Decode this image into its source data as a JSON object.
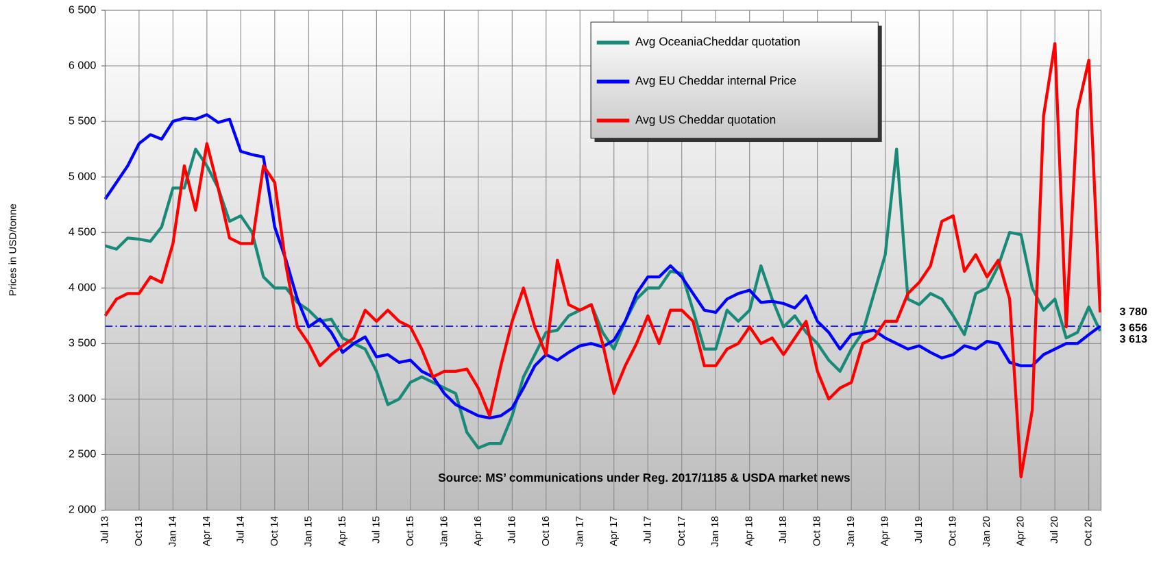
{
  "chart_data": {
    "type": "line",
    "y_label": "Prices in USD/tonne",
    "source": "Source: MS’ communications under Reg. 2017/1185  & USDA market news",
    "categories": [
      "Jul 13",
      null,
      null,
      "Oct 13",
      null,
      null,
      "Jan 14",
      null,
      null,
      "Apr 14",
      null,
      null,
      "Jul 14",
      null,
      null,
      "Oct 14",
      null,
      null,
      "Jan 15",
      null,
      null,
      "Apr 15",
      null,
      null,
      "Jul 15",
      null,
      null,
      "Oct 15",
      null,
      null,
      "Jan 16",
      null,
      null,
      "Apr 16",
      null,
      null,
      "Jul 16",
      null,
      null,
      "Oct 16",
      null,
      null,
      "Jan 17",
      null,
      null,
      "Apr 17",
      null,
      null,
      "Jul 17",
      null,
      null,
      "Oct 17",
      null,
      null,
      "Jan 18",
      null,
      null,
      "Apr 18",
      null,
      null,
      "Jul 18",
      null,
      null,
      "Oct 18",
      null,
      null,
      "Jan 19",
      null,
      null,
      "Apr 19",
      null,
      null,
      "Jul 19",
      null,
      null,
      "Oct 19",
      null,
      null,
      "Jan 20",
      null,
      null,
      "Apr 20",
      null,
      null,
      "Jul 20",
      null,
      null,
      "Oct 20",
      null
    ],
    "series": [
      {
        "name": "Avg OceaniaCheddar quotation",
        "color": "#1a8a78",
        "label_color": "#2e9e4e",
        "last_label": "3 613",
        "values": [
          4380,
          4350,
          4450,
          4440,
          4420,
          4550,
          4900,
          4900,
          5250,
          5100,
          4900,
          4600,
          4650,
          4500,
          4100,
          4000,
          4000,
          3870,
          3800,
          3700,
          3720,
          3550,
          3500,
          3450,
          3250,
          2950,
          3000,
          3150,
          3200,
          3150,
          3100,
          3050,
          2700,
          2560,
          2600,
          2600,
          2850,
          3200,
          3400,
          3600,
          3620,
          3750,
          3800,
          3850,
          3600,
          3450,
          3700,
          3900,
          4000,
          4000,
          4150,
          4130,
          3800,
          3450,
          3450,
          3800,
          3700,
          3800,
          4200,
          3900,
          3650,
          3750,
          3600,
          3500,
          3350,
          3250,
          3450,
          3600,
          3950,
          4300,
          5250,
          3900,
          3850,
          3950,
          3900,
          3750,
          3580,
          3950,
          4000,
          4200,
          4500,
          4480,
          4000,
          3800,
          3900,
          3550,
          3600,
          3830,
          3613
        ]
      },
      {
        "name": "Avg EU Cheddar internal Price",
        "color": "#0000ff",
        "label_color": "#0000ff",
        "last_label": "3 656",
        "values": [
          4800,
          4950,
          5100,
          5300,
          5380,
          5340,
          5500,
          5530,
          5520,
          5560,
          5490,
          5520,
          5230,
          5200,
          5180,
          4550,
          4250,
          3900,
          3650,
          3720,
          3600,
          3420,
          3500,
          3560,
          3380,
          3400,
          3330,
          3350,
          3250,
          3200,
          3050,
          2950,
          2900,
          2850,
          2830,
          2850,
          2920,
          3100,
          3300,
          3400,
          3350,
          3420,
          3480,
          3500,
          3470,
          3530,
          3700,
          3950,
          4100,
          4100,
          4200,
          4100,
          3950,
          3800,
          3780,
          3900,
          3950,
          3980,
          3870,
          3880,
          3860,
          3820,
          3930,
          3700,
          3600,
          3450,
          3580,
          3600,
          3620,
          3550,
          3500,
          3450,
          3480,
          3420,
          3370,
          3400,
          3480,
          3450,
          3520,
          3500,
          3330,
          3300,
          3300,
          3400,
          3450,
          3500,
          3500,
          3580,
          3656
        ]
      },
      {
        "name": "Avg US Cheddar quotation",
        "color": "#ff0000",
        "label_color": "#ff0000",
        "last_label": "3 780",
        "values": [
          3750,
          3900,
          3950,
          3950,
          4100,
          4050,
          4400,
          5100,
          4700,
          5300,
          4900,
          4450,
          4400,
          4400,
          5100,
          4950,
          4200,
          3650,
          3500,
          3300,
          3400,
          3480,
          3550,
          3800,
          3700,
          3800,
          3700,
          3650,
          3450,
          3200,
          3250,
          3250,
          3270,
          3100,
          2850,
          3300,
          3700,
          4000,
          3650,
          3400,
          4250,
          3850,
          3800,
          3850,
          3500,
          3050,
          3300,
          3500,
          3750,
          3500,
          3800,
          3800,
          3700,
          3300,
          3300,
          3450,
          3500,
          3650,
          3500,
          3550,
          3400,
          3550,
          3700,
          3250,
          3000,
          3100,
          3150,
          3500,
          3550,
          3700,
          3700,
          3950,
          4050,
          4200,
          4600,
          4650,
          4150,
          4300,
          4100,
          4250,
          3900,
          2300,
          2900,
          5550,
          6200,
          3650,
          5600,
          6050,
          3780
        ]
      }
    ],
    "reference_line": 3656,
    "ylim": [
      2000,
      6500
    ],
    "yticks": [
      {
        "value": 2000,
        "label": "2 000"
      },
      {
        "value": 2500,
        "label": "2 500"
      },
      {
        "value": 3000,
        "label": "3 000"
      },
      {
        "value": 3500,
        "label": "3 500"
      },
      {
        "value": 4000,
        "label": "4 000"
      },
      {
        "value": 4500,
        "label": "4 500"
      },
      {
        "value": 5000,
        "label": "5 000"
      },
      {
        "value": 5500,
        "label": "5 500"
      },
      {
        "value": 6000,
        "label": "6 000"
      },
      {
        "value": 6500,
        "label": "6 500"
      }
    ],
    "grid": true,
    "legend": "top"
  }
}
